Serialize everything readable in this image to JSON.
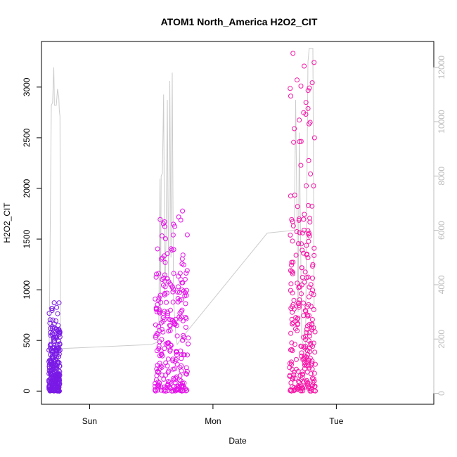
{
  "chart_data": {
    "type": "scatter",
    "title": "ATOM1 North_America H2O2_CIT",
    "xlabel": "Date",
    "ylabel": "H2O2_CIT",
    "x_ticks": [
      {
        "label": "Sun",
        "value": 0
      },
      {
        "label": "Mon",
        "value": 1
      },
      {
        "label": "Tue",
        "value": 2
      }
    ],
    "xlim": [
      -0.39,
      2.79
    ],
    "ylim": [
      -130,
      3450
    ],
    "y_ticks": [
      0,
      500,
      1000,
      1500,
      2000,
      2500,
      3000
    ],
    "y2lim": [
      -400,
      12950
    ],
    "y2_ticks": [
      0,
      2000,
      4000,
      6000,
      8000,
      10000,
      12000
    ],
    "y2_color": "#bdbdbd",
    "grid": false,
    "line_color": "#cccccc",
    "line_points": [
      [
        -0.33,
        450
      ],
      [
        -0.31,
        10600
      ],
      [
        -0.3,
        10700
      ],
      [
        -0.29,
        12000
      ],
      [
        -0.285,
        10600
      ],
      [
        -0.27,
        10600
      ],
      [
        -0.26,
        11200
      ],
      [
        -0.25,
        10900
      ],
      [
        -0.245,
        10400
      ],
      [
        -0.24,
        10200
      ],
      [
        -0.235,
        2500
      ],
      [
        -0.23,
        1650
      ],
      [
        0.5,
        1800
      ],
      [
        0.56,
        1900
      ],
      [
        0.57,
        7900
      ],
      [
        0.575,
        2400
      ],
      [
        0.58,
        8000
      ],
      [
        0.59,
        8100
      ],
      [
        0.6,
        11000
      ],
      [
        0.61,
        3500
      ],
      [
        0.62,
        5800
      ],
      [
        0.63,
        10800
      ],
      [
        0.64,
        4000
      ],
      [
        0.65,
        11500
      ],
      [
        0.66,
        5000
      ],
      [
        0.67,
        11800
      ],
      [
        0.68,
        3400
      ],
      [
        0.7,
        2100
      ],
      [
        0.71,
        1800
      ],
      [
        0.74,
        2000
      ],
      [
        1.44,
        5900
      ],
      [
        1.66,
        6000
      ],
      [
        1.67,
        10800
      ],
      [
        1.69,
        3000
      ],
      [
        1.7,
        9600
      ],
      [
        1.72,
        2000
      ],
      [
        1.75,
        1500
      ],
      [
        1.77,
        12200
      ],
      [
        1.78,
        12700
      ],
      [
        1.81,
        12700
      ],
      [
        1.82,
        3000
      ]
    ],
    "series": [
      {
        "color": "#7a1ae6",
        "x_range": [
          -0.33,
          -0.24
        ],
        "bulk": [
          0,
          300
        ],
        "mid": [
          300,
          650
        ],
        "peak": [
          650,
          880
        ]
      },
      {
        "color": "#e413e9",
        "x_range": [
          0.53,
          0.8
        ],
        "bulk": [
          0,
          750
        ],
        "mid": [
          750,
          1200
        ],
        "peak": [
          1200,
          1780
        ]
      },
      {
        "color": "#f615a6",
        "x_range": [
          1.62,
          1.83
        ],
        "bulk": [
          0,
          900
        ],
        "mid": [
          900,
          1700
        ],
        "peak": [
          1700,
          3350
        ]
      }
    ]
  }
}
